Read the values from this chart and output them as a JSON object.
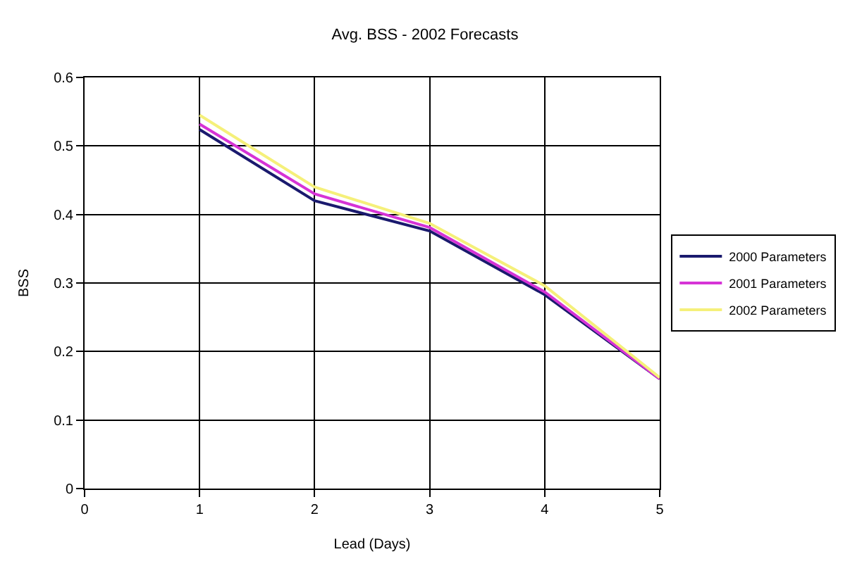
{
  "chart_data": {
    "type": "line",
    "title": "Avg. BSS - 2002 Forecasts",
    "xlabel": "Lead (Days)",
    "ylabel": "BSS",
    "x": [
      1,
      2,
      3,
      4,
      5
    ],
    "series": [
      {
        "name": "2000 Parameters",
        "color": "#1a1a6e",
        "values": [
          0.524,
          0.42,
          0.376,
          0.283,
          0.16
        ]
      },
      {
        "name": "2001 Parameters",
        "color": "#d633d6",
        "values": [
          0.532,
          0.43,
          0.381,
          0.287,
          0.16
        ]
      },
      {
        "name": "2002 Parameters",
        "color": "#f5f07a",
        "values": [
          0.545,
          0.44,
          0.387,
          0.296,
          0.162
        ]
      }
    ],
    "xlim": [
      0,
      5
    ],
    "xticks": [
      0,
      1,
      2,
      3,
      4,
      5
    ],
    "ylim": [
      0,
      0.6
    ],
    "yticks": [
      0,
      0.1,
      0.2,
      0.3,
      0.4,
      0.5,
      0.6
    ],
    "grid": true,
    "legend": "right",
    "marker": "none",
    "line_style": "solid"
  }
}
